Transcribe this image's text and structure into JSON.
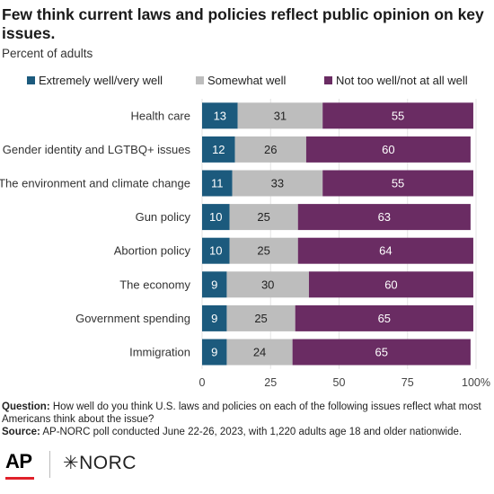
{
  "header": {
    "title": "Few think current laws and policies reflect public opinion on key issues.",
    "subtitle": "Percent of adults"
  },
  "colors": {
    "extremely_well": "#1c5a7d",
    "somewhat_well": "#bdbdbd",
    "not_too_well": "#6a2c63",
    "grid": "#e3e3e3"
  },
  "chart_data": {
    "type": "bar",
    "orientation": "horizontal",
    "stacked": true,
    "categories": [
      "Health care",
      "Gender identity and LGTBQ+ issues",
      "The environment and climate change",
      "Gun policy",
      "Abortion policy",
      "The economy",
      "Government spending",
      "Immigration"
    ],
    "series": [
      {
        "name": "Extremely well/very well",
        "values": [
          13,
          12,
          11,
          10,
          10,
          9,
          9,
          9
        ]
      },
      {
        "name": "Somewhat well",
        "values": [
          31,
          26,
          33,
          25,
          25,
          30,
          25,
          24
        ]
      },
      {
        "name": "Not too well/not at all well",
        "values": [
          55,
          60,
          55,
          63,
          64,
          60,
          65,
          65
        ]
      }
    ],
    "xlim": [
      0,
      100
    ],
    "xticks": [
      0,
      25,
      50,
      75,
      100
    ],
    "xtick_labels": [
      "0",
      "25",
      "50",
      "75",
      "100%"
    ],
    "legend_position": "top",
    "grid": true
  },
  "footer": {
    "question_label": "Question:",
    "question_text": "How well do you think U.S. laws and policies on each of the following issues reflect what most Americans think about the issue?",
    "source_label": "Source:",
    "source_text": "AP-NORC poll conducted June 22-26, 2023, with 1,220 adults age 18 and older nationwide."
  },
  "logos": {
    "ap": "AP",
    "norc": "✳NORC"
  }
}
